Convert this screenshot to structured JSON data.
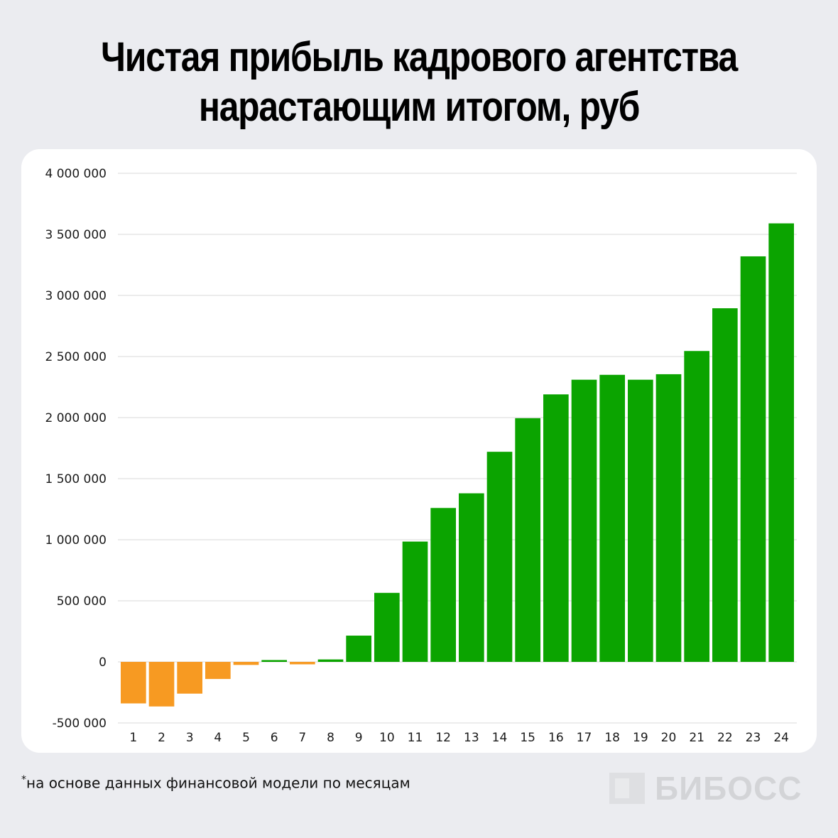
{
  "title": {
    "line1": "Чистая прибыль кадрового агентства",
    "line2": "нарастающим итогом, руб"
  },
  "footnote": {
    "mark": "*",
    "text": "на основе данных финансовой модели по месяцам"
  },
  "logo": {
    "text": "БИБОСС"
  },
  "colors": {
    "positive": "#0ba400",
    "negative": "#f79a22",
    "grid": "#d8d8d8",
    "background": "#ebecf0"
  },
  "chart_data": {
    "type": "bar",
    "title": "Чистая прибыль кадрового агентства нарастающим итогом, руб",
    "xlabel": "",
    "ylabel": "",
    "ylim": [
      -500000,
      4000000
    ],
    "yticks": [
      4000000,
      3500000,
      3000000,
      2500000,
      2000000,
      1500000,
      1000000,
      500000,
      0,
      -500000
    ],
    "ytick_labels": [
      "4 000 000",
      "3 500 000",
      "3 000 000",
      "2 500 000",
      "2 000 000",
      "1 500 000",
      "1 000 000",
      "500 000",
      "0",
      "-500 000"
    ],
    "grid": true,
    "categories": [
      "1",
      "2",
      "3",
      "4",
      "5",
      "6",
      "7",
      "8",
      "9",
      "10",
      "11",
      "12",
      "13",
      "14",
      "15",
      "16",
      "17",
      "18",
      "19",
      "20",
      "21",
      "22",
      "23",
      "24"
    ],
    "values": [
      -340000,
      -365000,
      -260000,
      -140000,
      -25000,
      15000,
      -20000,
      20000,
      215000,
      565000,
      985000,
      1260000,
      1380000,
      1720000,
      1995000,
      2190000,
      2310000,
      2350000,
      2310000,
      2355000,
      2545000,
      2895000,
      3320000,
      3590000
    ]
  }
}
